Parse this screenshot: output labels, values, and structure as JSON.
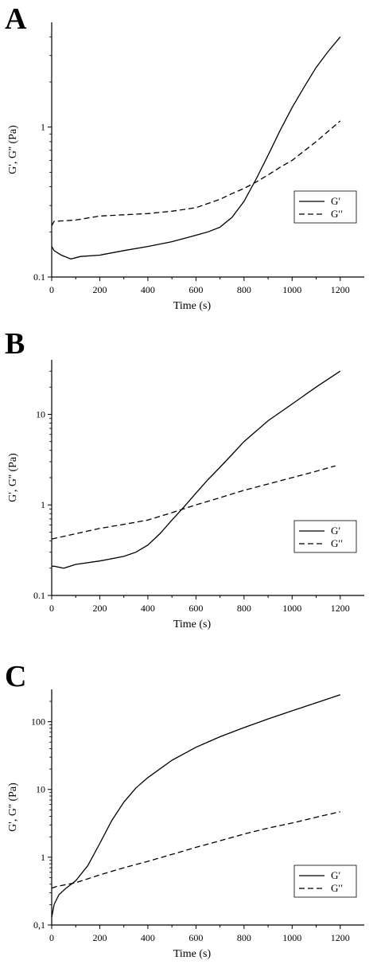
{
  "chart_data": [
    {
      "panel": "A",
      "type": "line",
      "xlabel": "Time (s)",
      "ylabel": "G', G'' (Pa)",
      "xlim": [
        0,
        1300
      ],
      "ylim": [
        0.1,
        5.0
      ],
      "yscale": "log",
      "xticks": [
        0,
        200,
        400,
        600,
        800,
        1000,
        1200
      ],
      "yticks": [
        0.1,
        1
      ],
      "ytick_labels": [
        "0.1",
        "1"
      ],
      "legend": {
        "position": "right-middle",
        "entries": [
          "G′",
          "G′′"
        ]
      },
      "series": [
        {
          "name": "G′",
          "style": "solid",
          "x": [
            0,
            10,
            40,
            80,
            120,
            200,
            300,
            400,
            500,
            600,
            650,
            700,
            750,
            800,
            850,
            900,
            950,
            1000,
            1050,
            1100,
            1150,
            1200
          ],
          "y": [
            0.16,
            0.15,
            0.14,
            0.132,
            0.137,
            0.14,
            0.15,
            0.16,
            0.172,
            0.19,
            0.2,
            0.215,
            0.25,
            0.32,
            0.45,
            0.65,
            0.95,
            1.35,
            1.85,
            2.5,
            3.2,
            4.0
          ]
        },
        {
          "name": "G′′",
          "style": "dashed",
          "x": [
            0,
            10,
            100,
            200,
            300,
            400,
            500,
            600,
            700,
            750,
            800,
            850,
            900,
            950,
            1000,
            1100,
            1200
          ],
          "y": [
            0.22,
            0.235,
            0.24,
            0.255,
            0.26,
            0.265,
            0.275,
            0.29,
            0.33,
            0.36,
            0.39,
            0.43,
            0.48,
            0.54,
            0.6,
            0.8,
            1.1
          ]
        }
      ]
    },
    {
      "panel": "B",
      "type": "line",
      "xlabel": "Time (s)",
      "ylabel": "G', G'' (Pa)",
      "xlim": [
        0,
        1300
      ],
      "ylim": [
        0.1,
        40
      ],
      "yscale": "log",
      "xticks": [
        0,
        200,
        400,
        600,
        800,
        1000,
        1200
      ],
      "yticks": [
        0.1,
        1,
        10
      ],
      "ytick_labels": [
        "0.1",
        "1",
        "10"
      ],
      "legend": {
        "position": "bottom-right",
        "entries": [
          "G′",
          "G′′"
        ]
      },
      "series": [
        {
          "name": "G′",
          "style": "solid",
          "x": [
            0,
            10,
            50,
            100,
            200,
            300,
            350,
            400,
            450,
            500,
            550,
            600,
            650,
            700,
            750,
            800,
            900,
            1000,
            1100,
            1200
          ],
          "y": [
            0.21,
            0.21,
            0.2,
            0.22,
            0.24,
            0.27,
            0.3,
            0.36,
            0.48,
            0.68,
            0.95,
            1.35,
            1.9,
            2.6,
            3.6,
            5.0,
            8.5,
            13.0,
            20.0,
            30.0
          ]
        },
        {
          "name": "G′′",
          "style": "dashed",
          "x": [
            0,
            100,
            200,
            300,
            400,
            500,
            600,
            700,
            800,
            900,
            1000,
            1100,
            1180
          ],
          "y": [
            0.42,
            0.48,
            0.55,
            0.61,
            0.68,
            0.82,
            1.0,
            1.2,
            1.45,
            1.7,
            2.0,
            2.35,
            2.7
          ]
        }
      ]
    },
    {
      "panel": "C",
      "type": "line",
      "xlabel": "Time (s)",
      "ylabel": "G', G'' (Pa)",
      "xlim": [
        0,
        1300
      ],
      "ylim": [
        0.1,
        300
      ],
      "yscale": "log",
      "xticks": [
        0,
        200,
        400,
        600,
        800,
        1000,
        1200
      ],
      "yticks": [
        0.1,
        1,
        10,
        100
      ],
      "ytick_labels": [
        "0,1",
        "1",
        "10",
        "100"
      ],
      "legend": {
        "position": "bottom-right",
        "entries": [
          "G′",
          "G′′"
        ]
      },
      "series": [
        {
          "name": "G′",
          "style": "solid",
          "x": [
            0,
            10,
            30,
            60,
            100,
            150,
            200,
            250,
            300,
            350,
            400,
            500,
            600,
            700,
            800,
            900,
            1000,
            1100,
            1200
          ],
          "y": [
            0.13,
            0.2,
            0.28,
            0.35,
            0.45,
            0.75,
            1.6,
            3.5,
            6.5,
            10.5,
            15.0,
            27.0,
            42.0,
            60.0,
            82.0,
            110.0,
            145.0,
            190.0,
            250.0
          ]
        },
        {
          "name": "G′′",
          "style": "dashed",
          "x": [
            0,
            20,
            100,
            200,
            300,
            400,
            500,
            600,
            700,
            800,
            900,
            1000,
            1100,
            1200
          ],
          "y": [
            0.35,
            0.37,
            0.42,
            0.55,
            0.7,
            0.87,
            1.1,
            1.4,
            1.75,
            2.2,
            2.7,
            3.2,
            3.9,
            4.7
          ]
        }
      ]
    }
  ]
}
